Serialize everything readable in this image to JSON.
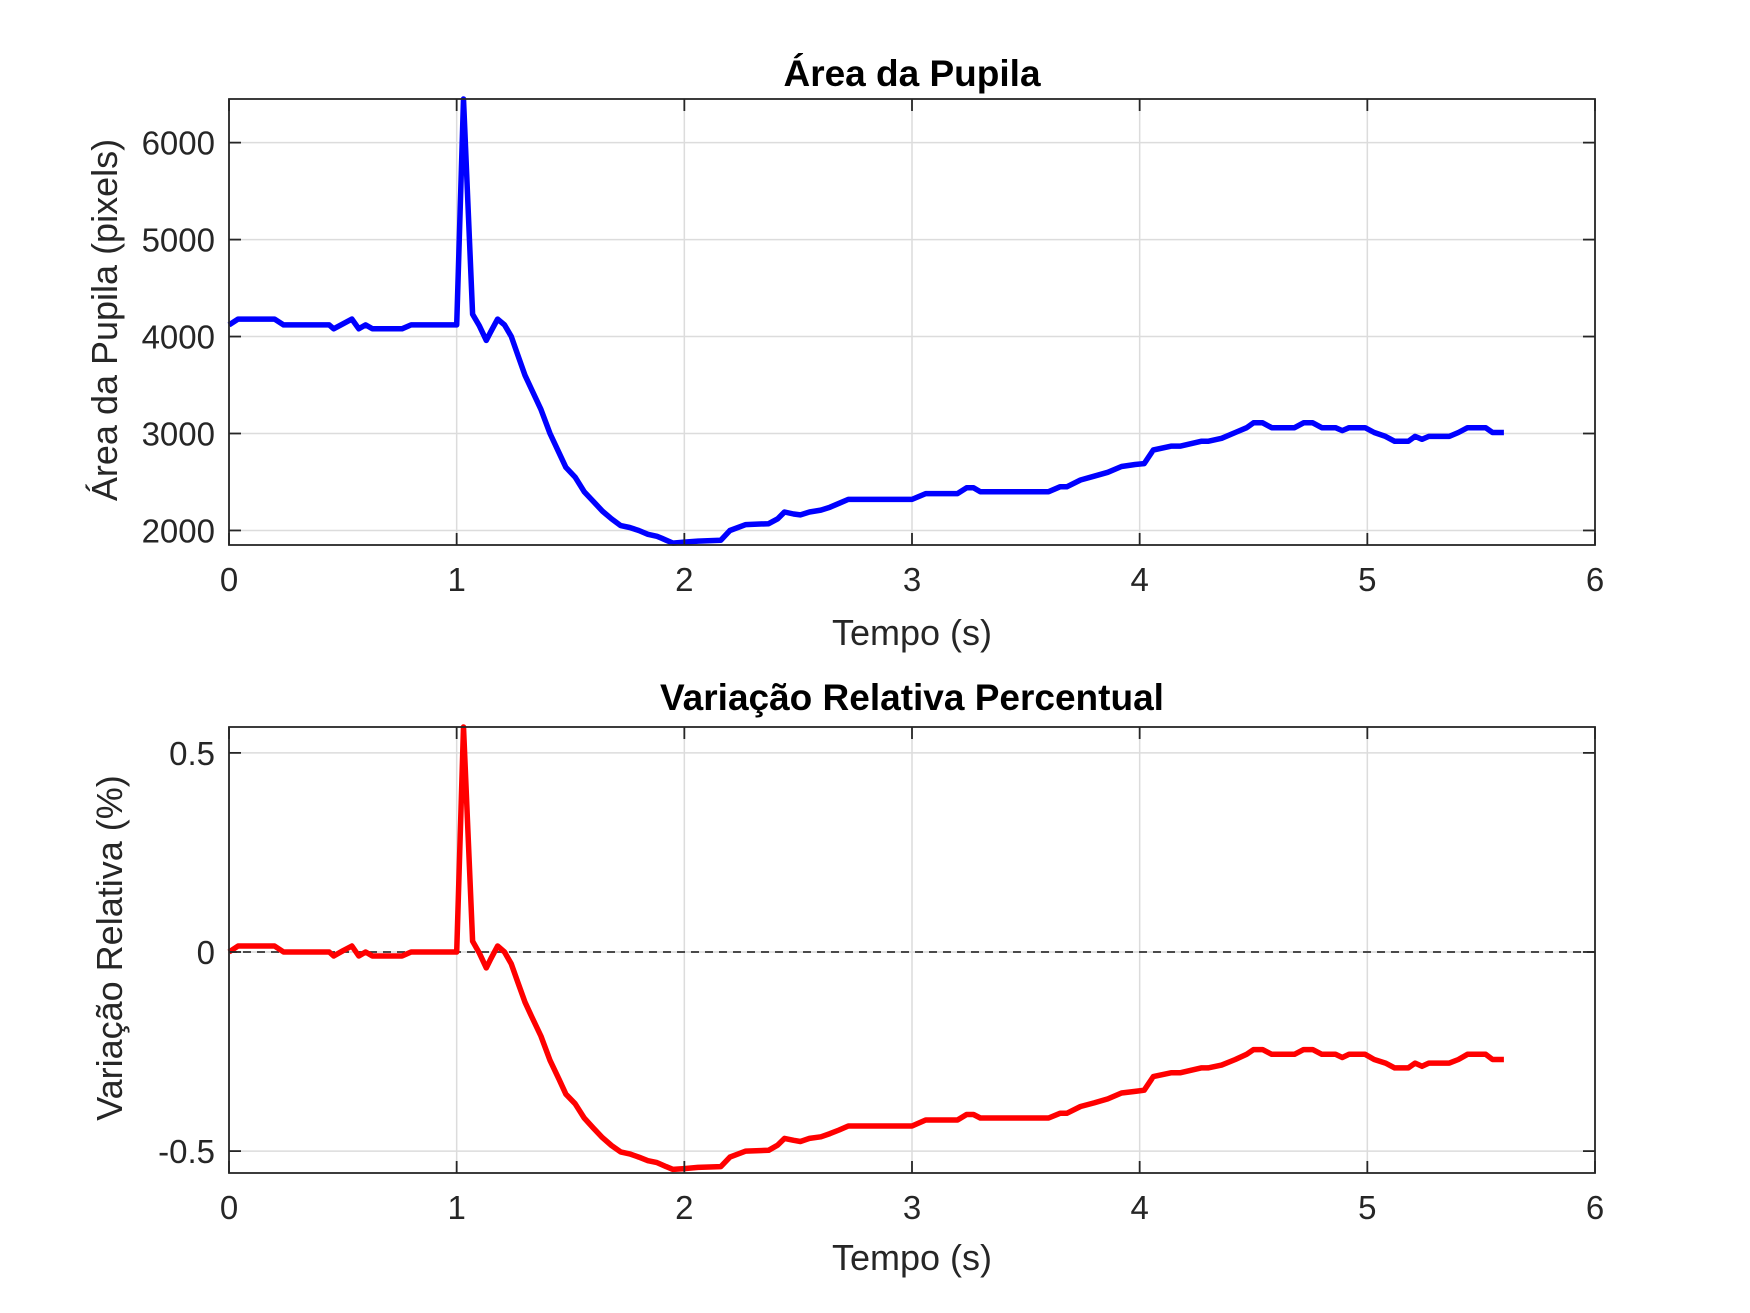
{
  "figure": {
    "background": "#ffffff",
    "grid_color": "#dcdcdc",
    "axes_color": "#262626"
  },
  "chart_data": [
    {
      "type": "line",
      "title": "Área da Pupila",
      "xlabel": "Tempo (s)",
      "ylabel": "Área da Pupila (pixels)",
      "xlim": [
        0,
        6
      ],
      "ylim": [
        1850,
        6450
      ],
      "xticks": [
        0,
        1,
        2,
        3,
        4,
        5,
        6
      ],
      "xtick_labels": [
        "0",
        "1",
        "2",
        "3",
        "4",
        "5",
        "6"
      ],
      "yticks": [
        2000,
        3000,
        4000,
        5000,
        6000
      ],
      "ytick_labels": [
        "2000",
        "3000",
        "4000",
        "5000",
        "6000"
      ],
      "grid": true,
      "series": [
        {
          "color": "#0000ff",
          "x": [
            0,
            0.04,
            0.2,
            0.24,
            0.44,
            0.46,
            0.5,
            0.54,
            0.57,
            0.6,
            0.63,
            0.66,
            0.76,
            0.8,
            1.0,
            1.03,
            1.07,
            1.1,
            1.13,
            1.15,
            1.18,
            1.21,
            1.24,
            1.27,
            1.3,
            1.33,
            1.37,
            1.41,
            1.45,
            1.48,
            1.52,
            1.56,
            1.6,
            1.64,
            1.68,
            1.72,
            1.76,
            1.8,
            1.84,
            1.88,
            1.9,
            1.92,
            1.95,
            2.0,
            2.06,
            2.16,
            2.2,
            2.27,
            2.37,
            2.41,
            2.44,
            2.48,
            2.51,
            2.55,
            2.6,
            2.64,
            2.68,
            2.72,
            2.85,
            3.0,
            3.06,
            3.2,
            3.24,
            3.27,
            3.3,
            3.6,
            3.65,
            3.68,
            3.74,
            3.8,
            3.86,
            3.92,
            3.98,
            4.02,
            4.06,
            4.14,
            4.18,
            4.27,
            4.3,
            4.36,
            4.42,
            4.47,
            4.5,
            4.54,
            4.58,
            4.68,
            4.72,
            4.76,
            4.8,
            4.86,
            4.89,
            4.92,
            4.99,
            5.03,
            5.08,
            5.12,
            5.18,
            5.21,
            5.24,
            5.27,
            5.36,
            5.4,
            5.44,
            5.52,
            5.55,
            5.6
          ],
          "y": [
            4120,
            4180,
            4180,
            4120,
            4120,
            4080,
            4130,
            4180,
            4080,
            4120,
            4080,
            4080,
            4080,
            4120,
            4120,
            6450,
            4230,
            4110,
            3960,
            4050,
            4180,
            4120,
            4000,
            3800,
            3600,
            3450,
            3250,
            3000,
            2800,
            2650,
            2550,
            2400,
            2300,
            2200,
            2120,
            2050,
            2030,
            2000,
            1960,
            1940,
            1920,
            1900,
            1870,
            1880,
            1890,
            1900,
            2000,
            2060,
            2070,
            2120,
            2190,
            2170,
            2160,
            2190,
            2210,
            2240,
            2280,
            2320,
            2320,
            2320,
            2380,
            2380,
            2440,
            2440,
            2400,
            2400,
            2450,
            2450,
            2520,
            2560,
            2600,
            2660,
            2680,
            2690,
            2830,
            2870,
            2870,
            2920,
            2920,
            2950,
            3010,
            3060,
            3110,
            3110,
            3060,
            3060,
            3110,
            3110,
            3060,
            3060,
            3030,
            3060,
            3060,
            3010,
            2970,
            2920,
            2920,
            2970,
            2940,
            2970,
            2970,
            3010,
            3060,
            3060,
            3010,
            3010
          ]
        }
      ]
    },
    {
      "type": "line",
      "title": "Variação Relativa Percentual",
      "xlabel": "Tempo (s)",
      "ylabel": "Variação Relativa (%)",
      "xlim": [
        0,
        6
      ],
      "ylim": [
        -0.555,
        0.565
      ],
      "xticks": [
        0,
        1,
        2,
        3,
        4,
        5,
        6
      ],
      "xtick_labels": [
        "0",
        "1",
        "2",
        "3",
        "4",
        "5",
        "6"
      ],
      "yticks": [
        -0.5,
        0,
        0.5
      ],
      "ytick_labels": [
        "-0.5",
        "0",
        "0.5"
      ],
      "grid": true,
      "reference_line": {
        "y": 0,
        "style": "dashed",
        "color": "#333333"
      },
      "series": [
        {
          "color": "#ff0000",
          "x": [
            0,
            0.04,
            0.2,
            0.24,
            0.44,
            0.46,
            0.5,
            0.54,
            0.57,
            0.6,
            0.63,
            0.66,
            0.76,
            0.8,
            1.0,
            1.03,
            1.07,
            1.1,
            1.13,
            1.15,
            1.18,
            1.21,
            1.24,
            1.27,
            1.3,
            1.33,
            1.37,
            1.41,
            1.45,
            1.48,
            1.52,
            1.56,
            1.6,
            1.64,
            1.68,
            1.72,
            1.76,
            1.8,
            1.84,
            1.88,
            1.9,
            1.92,
            1.95,
            2.0,
            2.06,
            2.16,
            2.2,
            2.27,
            2.37,
            2.41,
            2.44,
            2.48,
            2.51,
            2.55,
            2.6,
            2.64,
            2.68,
            2.72,
            2.85,
            3.0,
            3.06,
            3.2,
            3.24,
            3.27,
            3.3,
            3.6,
            3.65,
            3.68,
            3.74,
            3.8,
            3.86,
            3.92,
            3.98,
            4.02,
            4.06,
            4.14,
            4.18,
            4.27,
            4.3,
            4.36,
            4.42,
            4.47,
            4.5,
            4.54,
            4.58,
            4.68,
            4.72,
            4.76,
            4.8,
            4.86,
            4.89,
            4.92,
            4.99,
            5.03,
            5.08,
            5.12,
            5.18,
            5.21,
            5.24,
            5.27,
            5.36,
            5.4,
            5.44,
            5.52,
            5.55,
            5.6
          ],
          "y": [
            0.0,
            0.015,
            0.015,
            0.0,
            0.0,
            -0.01,
            0.003,
            0.015,
            -0.01,
            0.0,
            -0.01,
            -0.01,
            -0.01,
            0.0,
            0.0,
            0.565,
            0.027,
            -0.003,
            -0.04,
            -0.017,
            0.015,
            0.0,
            -0.03,
            -0.078,
            -0.126,
            -0.163,
            -0.211,
            -0.272,
            -0.32,
            -0.357,
            -0.381,
            -0.417,
            -0.442,
            -0.466,
            -0.486,
            -0.502,
            -0.507,
            -0.515,
            -0.524,
            -0.529,
            -0.534,
            -0.539,
            -0.546,
            -0.544,
            -0.541,
            -0.539,
            -0.515,
            -0.5,
            -0.498,
            -0.485,
            -0.468,
            -0.473,
            -0.476,
            -0.468,
            -0.464,
            -0.456,
            -0.447,
            -0.437,
            -0.437,
            -0.437,
            -0.422,
            -0.422,
            -0.408,
            -0.408,
            -0.417,
            -0.417,
            -0.405,
            -0.405,
            -0.388,
            -0.379,
            -0.369,
            -0.354,
            -0.35,
            -0.347,
            -0.313,
            -0.303,
            -0.303,
            -0.291,
            -0.291,
            -0.284,
            -0.27,
            -0.257,
            -0.245,
            -0.245,
            -0.257,
            -0.257,
            -0.245,
            -0.245,
            -0.257,
            -0.257,
            -0.265,
            -0.257,
            -0.257,
            -0.27,
            -0.279,
            -0.291,
            -0.291,
            -0.279,
            -0.287,
            -0.279,
            -0.279,
            -0.27,
            -0.257,
            -0.257,
            -0.27,
            -0.27
          ]
        }
      ]
    }
  ]
}
